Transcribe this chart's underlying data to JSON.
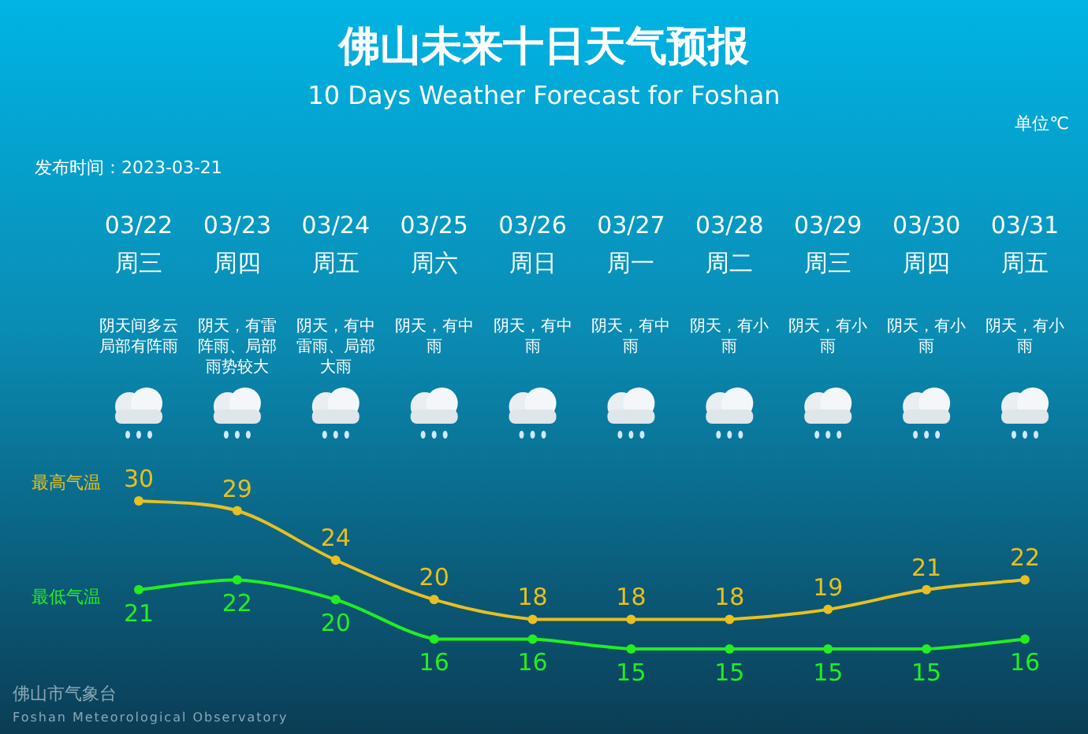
{
  "chart_data": {
    "type": "line",
    "title": "佛山未来十日天气预报",
    "subtitle": "10 Days Weather Forecast for Foshan",
    "categories": [
      "03/22\n周三",
      "03/23\n周四",
      "03/24\n周五",
      "03/25\n周六",
      "03/26\n周日",
      "03/27\n周一",
      "03/28\n周二",
      "03/29\n周三",
      "03/30\n周四",
      "03/31\n周五"
    ],
    "series": [
      {
        "name": "最高气温",
        "color": "#e8c020",
        "values": [
          30,
          29,
          24,
          20,
          18,
          18,
          18,
          19,
          21,
          22
        ]
      },
      {
        "name": "最低气温",
        "color": "#22ee22",
        "values": [
          21,
          22,
          20,
          16,
          16,
          15,
          15,
          15,
          15,
          16
        ]
      }
    ],
    "data_labels": true,
    "marker": "circle",
    "annotations": [
      "单位℃",
      "发布时间：2023-03-21",
      "佛山市气象台",
      "Foshan Meteorological Observatory",
      "阴天间多云局部有阵雨",
      "阴天，有雷阵雨、局部雨势较大",
      "阴天，有中雷雨、局部大雨",
      "阴天，有中雨",
      "阴天，有中雨",
      "阴天，有中雨",
      "阴天，有小雨",
      "阴天，有小雨",
      "阴天，有小雨",
      "阴天，有小雨"
    ]
  }
}
